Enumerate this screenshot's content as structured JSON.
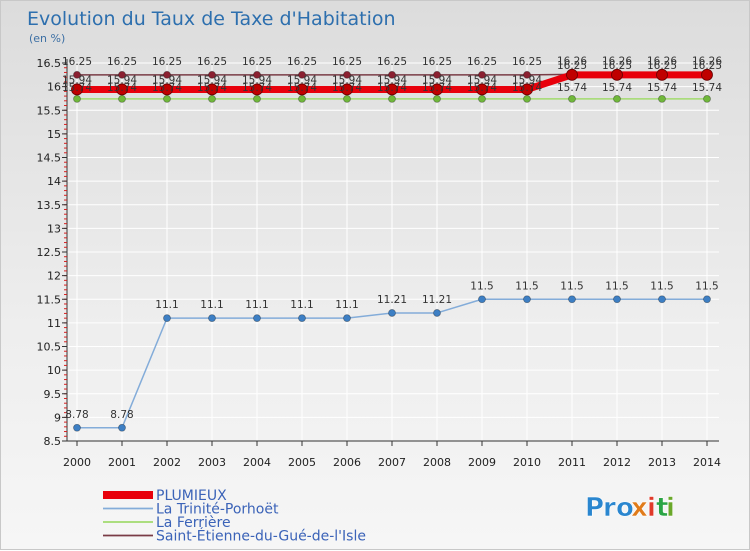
{
  "colors": {
    "background_top": "#dcdcdc",
    "background_bottom": "#f6f6f6",
    "grid": "#ffffff",
    "axis": "#222222",
    "title": "#2d6fae"
  },
  "brand": {
    "text": "Proxiti",
    "letters": [
      "P",
      "r",
      "o",
      "x",
      "i",
      "t",
      "i"
    ],
    "colors": [
      "#2a86cf",
      "#2a86cf",
      "#2a86cf",
      "#e07b1a",
      "#e03a2a",
      "#2aa545",
      "#6aa82a"
    ]
  },
  "chart_data": {
    "type": "line",
    "title": "Evolution du Taux de Taxe d'Habitation",
    "subtitle": "(en %)",
    "x": [
      "2000",
      "2001",
      "2002",
      "2003",
      "2004",
      "2005",
      "2006",
      "2007",
      "2008",
      "2009",
      "2010",
      "2011",
      "2012",
      "2013",
      "2014"
    ],
    "ylim": [
      8.5,
      16.5
    ],
    "yticks": [
      "8.5",
      "9",
      "9.5",
      "10",
      "10.5",
      "11",
      "11.5",
      "12",
      "12.5",
      "13",
      "13.5",
      "14",
      "14.5",
      "15",
      "15.5",
      "16",
      "16.5"
    ],
    "grid": true,
    "legend_position": "bottom-left",
    "series": [
      {
        "name": "PLUMIEUX",
        "color": "#e8000b",
        "marker": "#c00000",
        "width": 7,
        "values": [
          15.94,
          15.94,
          15.94,
          15.94,
          15.94,
          15.94,
          15.94,
          15.94,
          15.94,
          15.94,
          15.94,
          16.25,
          16.25,
          16.25,
          16.25
        ],
        "labels": [
          "15.94",
          "15.94",
          "15.94",
          "15.94",
          "15.94",
          "15.94",
          "15.94",
          "15.94",
          "15.94",
          "15.94",
          "15.94",
          "16.25",
          "16.25",
          "16.25",
          "16.25"
        ],
        "label_dy": -6
      },
      {
        "name": "La Trinité-Porhoët",
        "color": "#83acd9",
        "marker": "#3d7fc4",
        "width": 1.5,
        "values": [
          8.78,
          8.78,
          11.1,
          11.1,
          11.1,
          11.1,
          11.1,
          11.21,
          11.21,
          11.5,
          11.5,
          11.5,
          11.5,
          11.5,
          11.5
        ],
        "labels": [
          "8.78",
          "8.78",
          "11.1",
          "11.1",
          "11.1",
          "11.1",
          "11.1",
          "11.21",
          "11.21",
          "11.5",
          "11.5",
          "11.5",
          "11.5",
          "11.5",
          "11.5"
        ],
        "label_dy": -10
      },
      {
        "name": "La Ferrière",
        "color": "#a2db6e",
        "marker": "#70b83b",
        "width": 1.5,
        "values": [
          15.74,
          15.74,
          15.74,
          15.74,
          15.74,
          15.74,
          15.74,
          15.74,
          15.74,
          15.74,
          15.74,
          15.74,
          15.74,
          15.74,
          15.74
        ],
        "labels": [
          "15.74",
          "15.74",
          "15.74",
          "15.74",
          "15.74",
          "15.74",
          "15.74",
          "15.74",
          "15.74",
          "15.74",
          "15.74",
          "15.74",
          "15.74",
          "15.74",
          "15.74"
        ],
        "label_dy": -8
      },
      {
        "name": "Saint-Étienne-du-Gué-de-l'Isle",
        "color": "#7a3c46",
        "marker": "#8a2030",
        "width": 1.5,
        "values": [
          16.25,
          16.25,
          16.25,
          16.25,
          16.25,
          16.25,
          16.25,
          16.25,
          16.25,
          16.25,
          16.25,
          16.26,
          16.26,
          16.26,
          16.26
        ],
        "labels": [
          "16.25",
          "16.25",
          "16.25",
          "16.25",
          "16.25",
          "16.25",
          "16.25",
          "16.25",
          "16.25",
          "16.25",
          "16.25",
          "16.26",
          "16.26",
          "16.26",
          "16.26"
        ],
        "label_dy": -10
      }
    ]
  }
}
